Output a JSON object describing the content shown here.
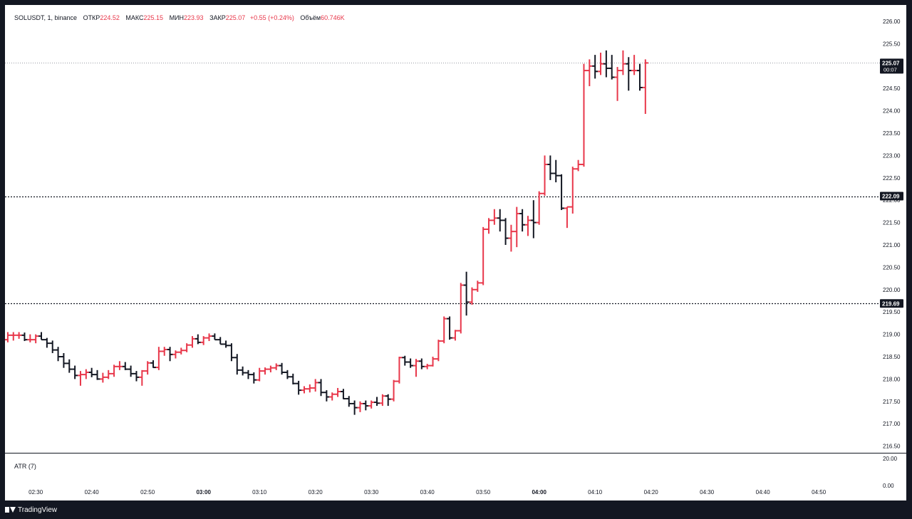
{
  "legend": {
    "symbol": "SOLUSDT, 1, binance",
    "open_label": "ОТКР",
    "open": "224.52",
    "high_label": "МАКС",
    "high": "225.15",
    "low_label": "МИН",
    "low": "223.93",
    "close_label": "ЗАКР",
    "close": "225.07",
    "change": "+0.55 (+0.24%)",
    "volume_label": "Объём",
    "volume": "60.746K"
  },
  "atr_label": "ATR (7)",
  "brand": "TradingView",
  "colors": {
    "up": "#e8374a",
    "down": "#131722",
    "background": "#ffffff",
    "frame": "#131722"
  },
  "chart_data": {
    "type": "ohlc",
    "symbol": "SOLUSDT",
    "interval": "1",
    "exchange": "binance",
    "ylim": [
      216.4,
      226.3
    ],
    "price_ticks": [
      "226.00",
      "225.50",
      "225.00",
      "224.50",
      "224.00",
      "223.50",
      "223.00",
      "222.50",
      "222.00",
      "221.50",
      "221.00",
      "220.50",
      "220.00",
      "219.50",
      "219.00",
      "218.50",
      "218.00",
      "217.50",
      "217.00",
      "216.50"
    ],
    "atr_ticks": [
      "20.00",
      "0.00"
    ],
    "time_ticks": [
      {
        "label": "02:30",
        "minute": 150,
        "bold": false
      },
      {
        "label": "02:40",
        "minute": 160,
        "bold": false
      },
      {
        "label": "02:50",
        "minute": 170,
        "bold": false
      },
      {
        "label": "03:00",
        "minute": 180,
        "bold": true
      },
      {
        "label": "03:10",
        "minute": 190,
        "bold": false
      },
      {
        "label": "03:20",
        "minute": 200,
        "bold": false
      },
      {
        "label": "03:30",
        "minute": 210,
        "bold": false
      },
      {
        "label": "03:40",
        "minute": 220,
        "bold": false
      },
      {
        "label": "03:50",
        "minute": 230,
        "bold": false
      },
      {
        "label": "04:00",
        "minute": 240,
        "bold": true
      },
      {
        "label": "04:10",
        "minute": 250,
        "bold": false
      },
      {
        "label": "04:20",
        "minute": 260,
        "bold": false
      },
      {
        "label": "04:30",
        "minute": 270,
        "bold": false
      },
      {
        "label": "04:40",
        "minute": 280,
        "bold": false
      },
      {
        "label": "04:50",
        "minute": 290,
        "bold": false
      }
    ],
    "x_range_minutes": [
      144.5,
      300.8
    ],
    "horizontal_lines": [
      {
        "price": 225.07,
        "label": "225.07",
        "sublabel": "00:07",
        "style": "dotted-light"
      },
      {
        "price": 222.09,
        "label": "222.09",
        "style": "dotted-dark"
      },
      {
        "price": 219.69,
        "label": "219.69",
        "style": "dotted-dark"
      }
    ],
    "bar_start_minute": 145,
    "bars": [
      [
        218.88,
        219.05,
        218.82,
        218.98
      ],
      [
        218.98,
        219.05,
        218.86,
        218.98
      ],
      [
        218.98,
        219.05,
        218.9,
        218.98
      ],
      [
        218.98,
        219.04,
        218.85,
        218.88
      ],
      [
        218.88,
        219.0,
        218.82,
        218.88
      ],
      [
        218.88,
        219.0,
        218.8,
        218.96
      ],
      [
        218.96,
        219.05,
        218.88,
        218.88
      ],
      [
        218.88,
        218.92,
        218.7,
        218.8
      ],
      [
        218.8,
        218.86,
        218.58,
        218.65
      ],
      [
        218.65,
        218.72,
        218.4,
        218.5
      ],
      [
        218.5,
        218.58,
        218.25,
        218.35
      ],
      [
        218.35,
        218.44,
        218.14,
        218.22
      ],
      [
        218.22,
        218.3,
        218.0,
        218.08
      ],
      [
        218.08,
        218.18,
        217.85,
        218.1
      ],
      [
        218.1,
        218.22,
        218.0,
        218.15
      ],
      [
        218.15,
        218.25,
        218.04,
        218.1
      ],
      [
        218.1,
        218.2,
        217.98,
        218.0
      ],
      [
        218.0,
        218.14,
        217.92,
        218.04
      ],
      [
        218.04,
        218.2,
        218.0,
        218.12
      ],
      [
        218.12,
        218.32,
        218.05,
        218.28
      ],
      [
        218.28,
        218.4,
        218.2,
        218.28
      ],
      [
        218.28,
        218.38,
        218.2,
        218.22
      ],
      [
        218.22,
        218.3,
        218.05,
        218.12
      ],
      [
        218.12,
        218.18,
        217.95,
        218.04
      ],
      [
        218.04,
        218.2,
        217.85,
        218.18
      ],
      [
        218.18,
        218.4,
        218.1,
        218.36
      ],
      [
        218.36,
        218.42,
        218.25,
        218.26
      ],
      [
        218.26,
        218.72,
        218.2,
        218.62
      ],
      [
        218.62,
        218.72,
        218.52,
        218.66
      ],
      [
        218.66,
        218.72,
        218.4,
        218.55
      ],
      [
        218.55,
        218.64,
        218.46,
        218.6
      ],
      [
        218.6,
        218.7,
        218.55,
        218.64
      ],
      [
        218.64,
        218.8,
        218.6,
        218.76
      ],
      [
        218.76,
        218.96,
        218.7,
        218.9
      ],
      [
        218.9,
        219.0,
        218.78,
        218.82
      ],
      [
        218.82,
        218.96,
        218.76,
        218.92
      ],
      [
        218.92,
        219.02,
        218.85,
        218.96
      ],
      [
        218.96,
        219.02,
        218.88,
        218.88
      ],
      [
        218.88,
        218.94,
        218.78,
        218.78
      ],
      [
        218.78,
        218.86,
        218.7,
        218.75
      ],
      [
        218.75,
        218.8,
        218.4,
        218.48
      ],
      [
        218.48,
        218.56,
        218.1,
        218.2
      ],
      [
        218.2,
        218.28,
        218.08,
        218.14
      ],
      [
        218.14,
        218.2,
        218.0,
        218.1
      ],
      [
        218.1,
        218.15,
        217.9,
        217.98
      ],
      [
        217.98,
        218.25,
        217.95,
        218.18
      ],
      [
        218.18,
        218.26,
        218.1,
        218.22
      ],
      [
        218.22,
        218.3,
        218.15,
        218.25
      ],
      [
        218.25,
        218.35,
        218.2,
        218.3
      ],
      [
        218.3,
        218.36,
        218.1,
        218.15
      ],
      [
        218.15,
        218.2,
        218.0,
        218.05
      ],
      [
        218.05,
        218.12,
        217.88,
        217.9
      ],
      [
        217.9,
        217.96,
        217.65,
        217.75
      ],
      [
        217.75,
        217.84,
        217.68,
        217.78
      ],
      [
        217.78,
        217.88,
        217.7,
        217.8
      ],
      [
        217.8,
        218.0,
        217.72,
        217.92
      ],
      [
        217.92,
        218.0,
        217.62,
        217.7
      ],
      [
        217.7,
        217.75,
        217.5,
        217.6
      ],
      [
        217.6,
        217.7,
        217.52,
        217.66
      ],
      [
        217.66,
        217.8,
        217.6,
        217.72
      ],
      [
        217.72,
        217.78,
        217.55,
        217.56
      ],
      [
        217.56,
        217.62,
        217.38,
        217.45
      ],
      [
        217.45,
        217.52,
        217.2,
        217.36
      ],
      [
        217.36,
        217.5,
        217.26,
        217.45
      ],
      [
        217.45,
        217.52,
        217.3,
        217.4
      ],
      [
        217.4,
        217.52,
        217.34,
        217.48
      ],
      [
        217.48,
        217.6,
        217.4,
        217.46
      ],
      [
        217.46,
        217.66,
        217.4,
        217.62
      ],
      [
        217.62,
        217.66,
        217.4,
        217.55
      ],
      [
        217.55,
        217.98,
        217.5,
        217.95
      ],
      [
        217.95,
        218.5,
        217.9,
        218.48
      ],
      [
        218.48,
        218.52,
        218.3,
        218.38
      ],
      [
        218.38,
        218.46,
        218.25,
        218.3
      ],
      [
        218.3,
        218.45,
        218.05,
        218.4
      ],
      [
        218.4,
        218.46,
        218.22,
        218.28
      ],
      [
        218.28,
        218.34,
        218.22,
        218.3
      ],
      [
        218.3,
        218.5,
        218.28,
        218.45
      ],
      [
        218.45,
        218.88,
        218.4,
        218.85
      ],
      [
        218.85,
        219.4,
        218.8,
        219.35
      ],
      [
        219.35,
        219.4,
        218.88,
        218.92
      ],
      [
        218.92,
        219.1,
        218.86,
        219.08
      ],
      [
        219.08,
        220.15,
        219.02,
        220.1
      ],
      [
        220.1,
        220.4,
        219.42,
        219.72
      ],
      [
        219.72,
        220.05,
        219.66,
        220.0
      ],
      [
        220.0,
        220.2,
        219.95,
        220.15
      ],
      [
        220.15,
        221.4,
        220.1,
        221.35
      ],
      [
        221.35,
        221.6,
        221.25,
        221.55
      ],
      [
        221.55,
        221.8,
        221.45,
        221.6
      ],
      [
        221.6,
        221.8,
        221.3,
        221.55
      ],
      [
        221.55,
        221.6,
        221.0,
        221.15
      ],
      [
        221.15,
        221.45,
        220.85,
        221.3
      ],
      [
        221.3,
        221.85,
        220.95,
        221.7
      ],
      [
        221.7,
        221.8,
        221.3,
        221.45
      ],
      [
        221.45,
        221.65,
        221.2,
        221.55
      ],
      [
        221.55,
        222.0,
        221.15,
        221.5
      ],
      [
        221.5,
        222.2,
        221.45,
        222.15
      ],
      [
        222.15,
        223.0,
        222.1,
        222.8
      ],
      [
        222.8,
        223.0,
        222.45,
        222.6
      ],
      [
        222.6,
        222.9,
        222.4,
        222.55
      ],
      [
        222.55,
        222.58,
        221.78,
        221.82
      ],
      [
        221.82,
        221.85,
        221.38,
        221.85
      ],
      [
        221.85,
        222.75,
        221.7,
        222.7
      ],
      [
        222.7,
        222.9,
        222.65,
        222.8
      ],
      [
        222.8,
        225.05,
        222.75,
        224.9
      ],
      [
        224.9,
        225.15,
        224.55,
        225.0
      ],
      [
        225.0,
        225.25,
        224.72,
        224.88
      ],
      [
        224.88,
        225.3,
        224.8,
        225.05
      ],
      [
        225.05,
        225.35,
        224.75,
        224.95
      ],
      [
        224.95,
        225.25,
        224.7,
        224.75
      ],
      [
        224.75,
        224.98,
        224.22,
        224.9
      ],
      [
        224.9,
        225.35,
        224.8,
        225.05
      ],
      [
        225.05,
        225.2,
        224.45,
        224.9
      ],
      [
        224.9,
        225.25,
        224.8,
        224.9
      ],
      [
        224.9,
        225.05,
        224.45,
        224.52
      ],
      [
        224.52,
        225.15,
        223.93,
        225.07
      ]
    ]
  }
}
